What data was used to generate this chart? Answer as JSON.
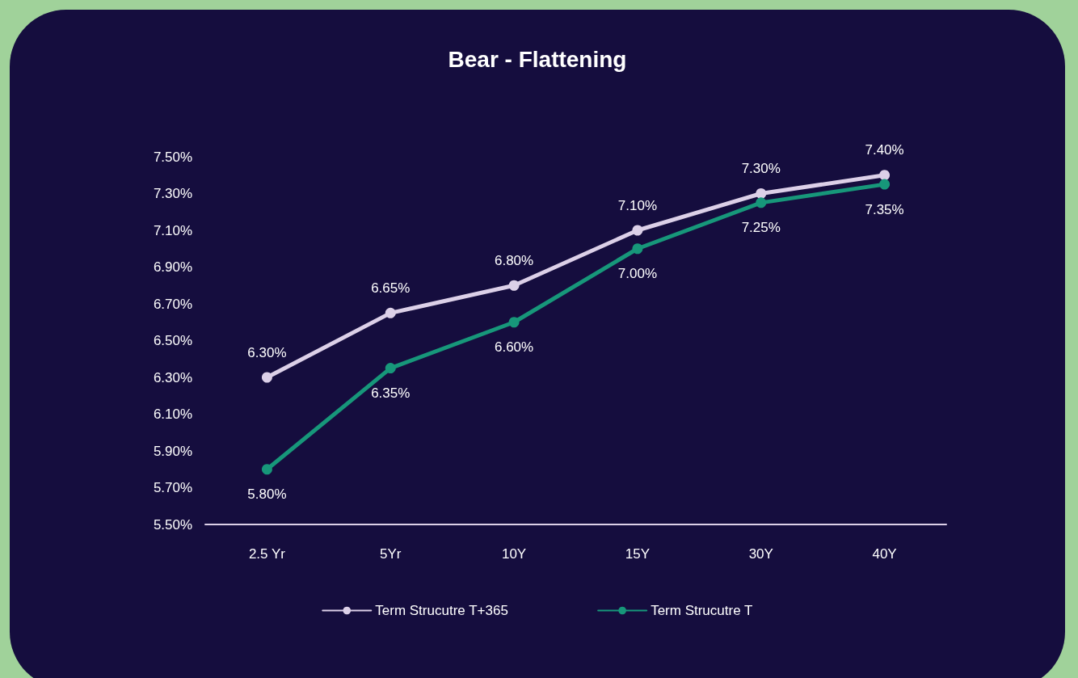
{
  "chart_data": {
    "type": "line",
    "title": "Bear - Flattening",
    "categories": [
      "2.5 Yr",
      "5Yr",
      "10Y",
      "15Y",
      "30Y",
      "40Y"
    ],
    "series": [
      {
        "name": "Term Strucutre T+365",
        "color": "#dcd0e8",
        "values": [
          6.3,
          6.65,
          6.8,
          7.1,
          7.3,
          7.4
        ],
        "value_labels": [
          "6.30%",
          "6.65%",
          "6.80%",
          "7.10%",
          "7.30%",
          "7.40%"
        ]
      },
      {
        "name": "Term Strucutre T",
        "color": "#17977a",
        "values": [
          5.8,
          6.35,
          6.6,
          7.0,
          7.25,
          7.35
        ],
        "value_labels": [
          "5.80%",
          "6.35%",
          "6.60%",
          "7.00%",
          "7.25%",
          "7.35%"
        ]
      }
    ],
    "ylim": [
      5.5,
      7.5
    ],
    "yticks": [
      {
        "value": 5.5,
        "label": "5.50%"
      },
      {
        "value": 5.7,
        "label": "5.70%"
      },
      {
        "value": 5.9,
        "label": "5.90%"
      },
      {
        "value": 6.1,
        "label": "6.10%"
      },
      {
        "value": 6.3,
        "label": "6.30%"
      },
      {
        "value": 6.5,
        "label": "6.50%"
      },
      {
        "value": 6.7,
        "label": "6.70%"
      },
      {
        "value": 6.9,
        "label": "6.90%"
      },
      {
        "value": 7.1,
        "label": "7.10%"
      },
      {
        "value": 7.3,
        "label": "7.30%"
      },
      {
        "value": 7.5,
        "label": "7.50%"
      }
    ],
    "grid": false,
    "legend": "bottom",
    "marker": "circle",
    "line_style": "solid"
  }
}
